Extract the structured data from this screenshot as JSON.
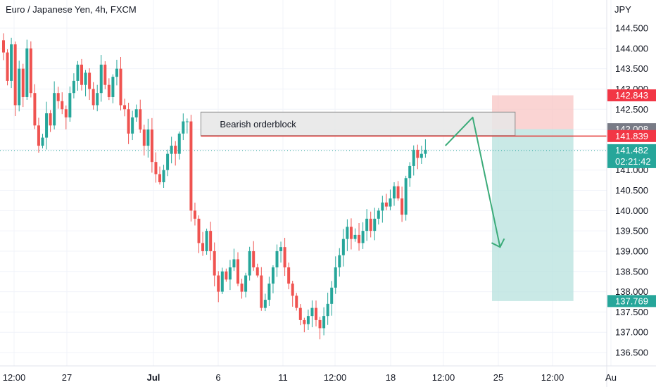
{
  "header": {
    "title": "Euro / Japanese Yen, 4h, FXCM"
  },
  "colors": {
    "up": "#26a69a",
    "down": "#ef5350",
    "grid": "#f0f3fa",
    "axis_text": "#131722",
    "stop_zone": "#f8c5c4",
    "target_zone": "#b2dfdb",
    "orderblock_fill": "#e6e6e6",
    "orderblock_border": "#8a8a8a",
    "red_line": "#e53935",
    "last_price": "#26a69a",
    "badge_grey": "#787b86",
    "badge_red": "#f23645",
    "arrow": "#3bab79"
  },
  "chart_data": {
    "type": "candlestick",
    "symbol": "Euro / Japanese Yen, 4h, FXCM",
    "currency_label": "JPY",
    "y_ticks": [
      "144.500",
      "144.000",
      "143.500",
      "143.000",
      "142.500",
      "142.000",
      "141.500",
      "141.000",
      "140.500",
      "140.000",
      "139.500",
      "139.000",
      "138.500",
      "138.000",
      "137.500",
      "137.000",
      "136.500"
    ],
    "x_ticks": [
      "12:00",
      "27",
      "Jul",
      "6",
      "11",
      "12:00",
      "18",
      "12:00",
      "25",
      "12:00",
      "Au"
    ],
    "ylim": [
      136.3,
      144.9
    ],
    "grid": true,
    "annotations": {
      "orderblock": {
        "label": "Bearish orderblock",
        "top": 142.43,
        "bottom": 141.85,
        "from_index": 48,
        "to_bar": 127
      },
      "red_line": {
        "price": 141.839,
        "from_index": 48
      },
      "position": {
        "entry": 142.008,
        "stop": 142.843,
        "target": 137.769,
        "from_bar": 120,
        "to_bar": 143
      },
      "projection_arrow": [
        [
          105,
          141.6
        ],
        [
          112,
          142.3
        ],
        [
          119,
          139.1
        ]
      ]
    },
    "price_labels": [
      {
        "text": "142.843",
        "price": 142.843,
        "style": "red"
      },
      {
        "text": "142.008",
        "price": 142.008,
        "style": "grey"
      },
      {
        "text": "141.839",
        "price": 141.839,
        "style": "red"
      },
      {
        "text": "141.482",
        "subtext": "02:21:42",
        "price": 141.482,
        "style": "green"
      },
      {
        "text": "137.769",
        "price": 137.769,
        "style": "green"
      }
    ],
    "last_price": 141.482,
    "countdown": "02:21:42",
    "closes": [
      143.9,
      143.2,
      144.1,
      142.6,
      143.5,
      142.8,
      144.0,
      142.9,
      142.1,
      141.6,
      141.8,
      142.4,
      142.1,
      142.9,
      142.7,
      142.5,
      142.3,
      142.9,
      143.2,
      143.6,
      143.1,
      143.4,
      143.0,
      142.6,
      142.9,
      143.6,
      143.1,
      142.8,
      143.3,
      143.5,
      142.6,
      142.5,
      141.9,
      142.3,
      142.5,
      142.0,
      141.6,
      142.0,
      141.2,
      140.9,
      140.7,
      141.0,
      141.4,
      141.6,
      141.4,
      141.9,
      142.2,
      142.2,
      140.0,
      139.8,
      139.2,
      139.0,
      139.5,
      139.0,
      138.4,
      138.0,
      138.5,
      138.3,
      138.6,
      138.8,
      138.2,
      138.0,
      138.4,
      139.0,
      138.6,
      138.4,
      137.6,
      137.8,
      138.2,
      138.6,
      139.0,
      139.1,
      138.6,
      138.2,
      137.9,
      137.6,
      137.3,
      137.2,
      137.4,
      137.6,
      137.3,
      137.1,
      137.4,
      137.7,
      138.1,
      138.6,
      138.9,
      139.3,
      139.6,
      139.3,
      139.4,
      139.2,
      139.5,
      139.8,
      139.5,
      139.8,
      140.0,
      140.2,
      140.1,
      140.3,
      140.6,
      140.3,
      139.9,
      140.8,
      141.1,
      141.5,
      141.3,
      141.4,
      141.5
    ]
  }
}
